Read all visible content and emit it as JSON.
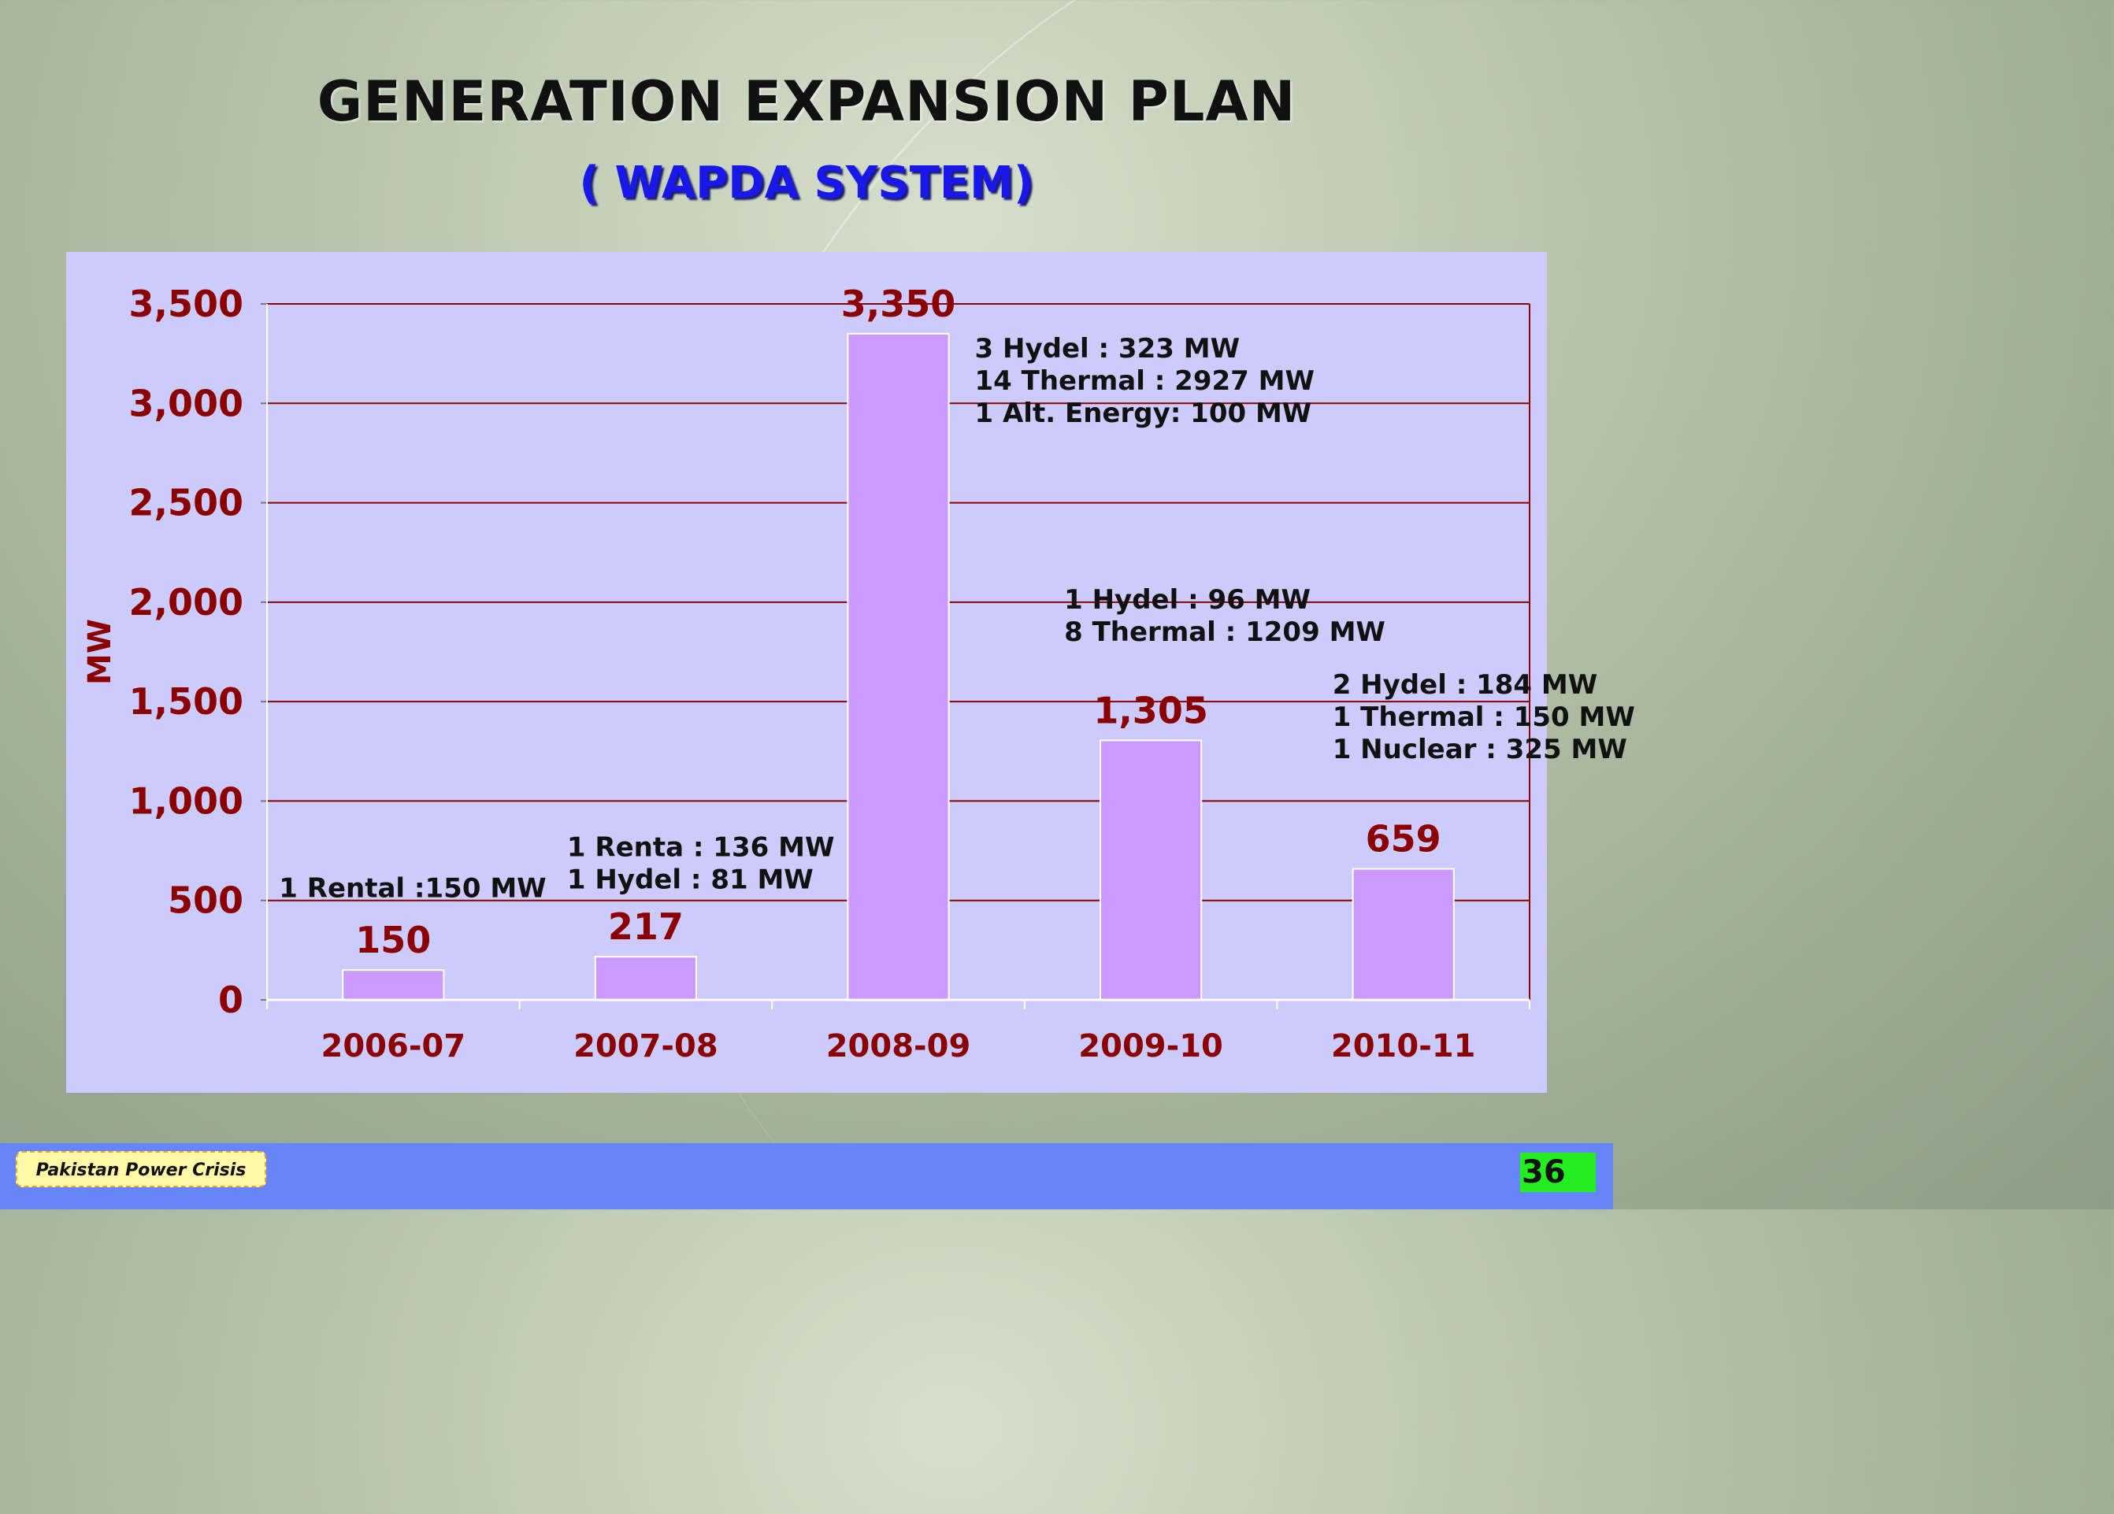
{
  "slide": {
    "title": "GENERATION EXPANSION PLAN",
    "subtitle": "( WAPDA SYSTEM)",
    "footer_label": "Pakistan Power Crisis",
    "page_number": "36"
  },
  "colors": {
    "bar_fill": "#cc99ff",
    "plot_background": "#cccbfb",
    "axis_text": "#8b0000",
    "gridline": "#8b0000",
    "subtitle": "#1818e8",
    "footer_bar": "#6686f8",
    "page_number_bg": "#22ee22"
  },
  "chart_data": {
    "type": "bar",
    "ylabel": "MW",
    "ylim": [
      0,
      3500
    ],
    "yticks": [
      0,
      500,
      1000,
      1500,
      2000,
      2500,
      3000,
      3500
    ],
    "ytick_labels": [
      "0",
      "500",
      "1,000",
      "1,500",
      "2,000",
      "2,500",
      "3,000",
      "3,500"
    ],
    "grid": true,
    "categories": [
      "2006-07",
      "2007-08",
      "2008-09",
      "2009-10",
      "2010-11"
    ],
    "values": [
      150,
      217,
      3350,
      1305,
      659
    ],
    "value_labels": [
      "150",
      "217",
      "3,350",
      "1,305",
      "659"
    ],
    "annotations": [
      {
        "category": "2006-07",
        "lines": [
          "1 Rental :150 MW"
        ]
      },
      {
        "category": "2007-08",
        "lines": [
          "1 Renta : 136 MW",
          "1 Hydel :   81 MW"
        ]
      },
      {
        "category": "2008-09",
        "lines": [
          "3 Hydel       :   323 MW",
          "14 Thermal : 2927 MW",
          "1 Alt. Energy:  100 MW"
        ]
      },
      {
        "category": "2009-10",
        "lines": [
          "1  Hydel    :     96 MW",
          "8 Thermal : 1209 MW"
        ]
      },
      {
        "category": "2010-11",
        "lines": [
          "2 Hydel     : 184 MW",
          "1 Thermal : 150 MW",
          "1 Nuclear  : 325 MW"
        ]
      }
    ]
  }
}
